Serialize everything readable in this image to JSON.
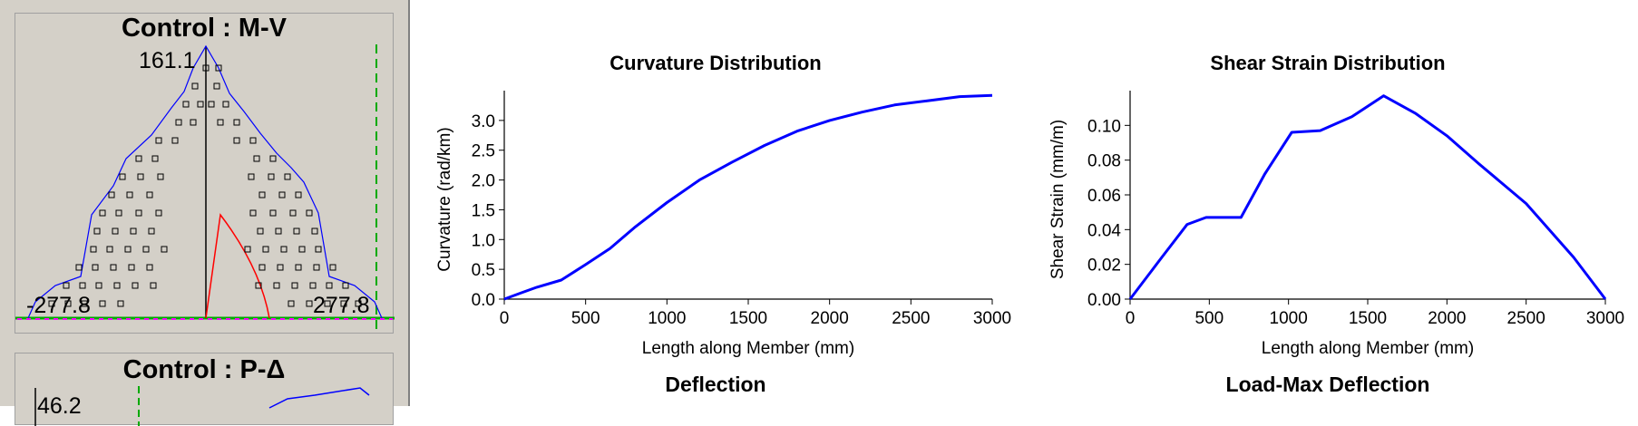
{
  "left_panel": {
    "mv_title": "Control : M-V",
    "mv_top_label": "161.1",
    "mv_left_label": "-277.8",
    "mv_right_label": "277.8",
    "pd_title": "Control : P-Δ",
    "pd_value_label": "46.2"
  },
  "colors": {
    "curve": "#0000ff",
    "red": "#ff0000",
    "green": "#00aa00",
    "magenta": "#ff00ff",
    "panel_bg": "#d4d0c8"
  },
  "bottom_titles": {
    "left": "Deflection",
    "right": "Load-Max Deflection"
  },
  "chart_data": [
    {
      "type": "line",
      "title": "Curvature Distribution",
      "xlabel": "Length along Member (mm)",
      "ylabel": "Curvature (rad/km)",
      "xlim": [
        0,
        3000
      ],
      "ylim": [
        0,
        3.5
      ],
      "xticks": [
        0,
        500,
        1000,
        1500,
        2000,
        2500,
        3000
      ],
      "yticks": [
        0.0,
        0.5,
        1.0,
        1.5,
        2.0,
        2.5,
        3.0
      ],
      "ytick_labels": [
        "0.0",
        "0.5",
        "1.0",
        "1.5",
        "2.0",
        "2.5",
        "3.0"
      ],
      "grid": false,
      "series": [
        {
          "x": [
            0,
            100,
            200,
            350,
            500,
            650,
            800,
            1000,
            1200,
            1400,
            1600,
            1800,
            2000,
            2200,
            2400,
            2600,
            2800,
            3000
          ],
          "y": [
            0.0,
            0.1,
            0.2,
            0.32,
            0.58,
            0.85,
            1.2,
            1.62,
            2.0,
            2.3,
            2.58,
            2.82,
            3.0,
            3.14,
            3.26,
            3.33,
            3.4,
            3.42
          ]
        }
      ]
    },
    {
      "type": "line",
      "title": "Shear Strain Distribution",
      "xlabel": "Length along Member (mm)",
      "ylabel": "Shear Strain (mm/m)",
      "xlim": [
        0,
        3000
      ],
      "ylim": [
        0,
        0.12
      ],
      "xticks": [
        0,
        500,
        1000,
        1500,
        2000,
        2500,
        3000
      ],
      "yticks": [
        0.0,
        0.02,
        0.04,
        0.06,
        0.08,
        0.1
      ],
      "ytick_labels": [
        "0.00",
        "0.02",
        "0.04",
        "0.06",
        "0.08",
        "0.10"
      ],
      "grid": false,
      "series": [
        {
          "x": [
            0,
            200,
            360,
            480,
            600,
            700,
            850,
            1020,
            1200,
            1400,
            1600,
            1800,
            2000,
            2200,
            2500,
            2800,
            3000
          ],
          "y": [
            0.0,
            0.024,
            0.043,
            0.047,
            0.047,
            0.047,
            0.072,
            0.096,
            0.097,
            0.105,
            0.117,
            0.107,
            0.094,
            0.078,
            0.055,
            0.024,
            0.0
          ]
        }
      ]
    }
  ]
}
